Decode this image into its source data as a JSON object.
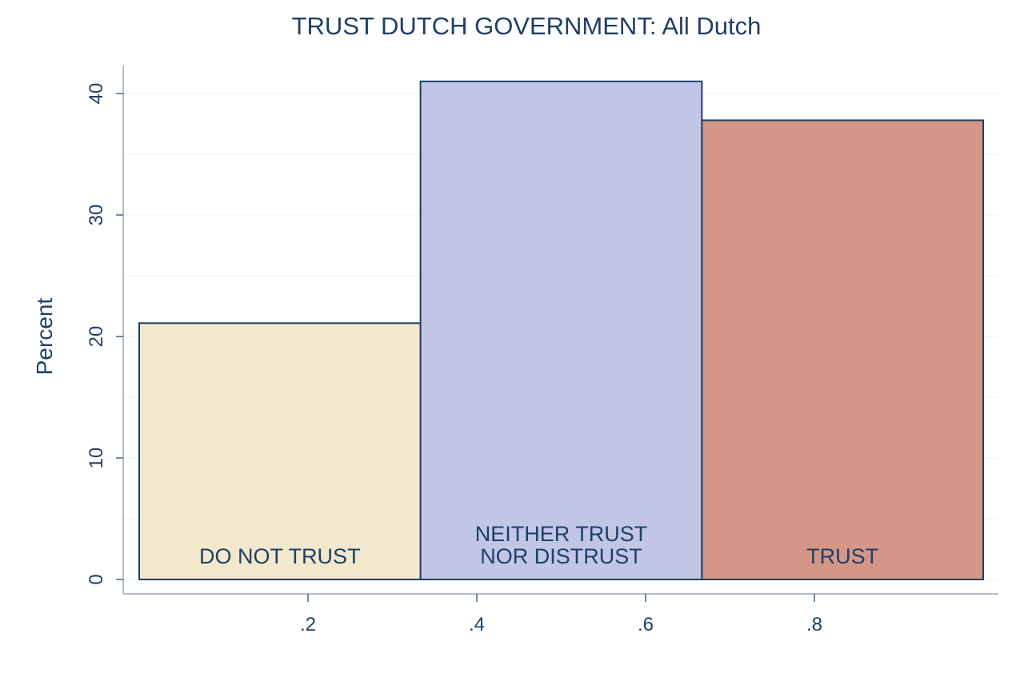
{
  "chart_data": {
    "type": "bar",
    "title": "TRUST DUTCH GOVERNMENT: All Dutch",
    "ylabel": "Percent",
    "xlabel": "",
    "xlim": [
      0,
      1.0
    ],
    "ylim": [
      0,
      40
    ],
    "yticks": [
      0,
      10,
      20,
      30,
      40
    ],
    "xticks": [
      ".2",
      ".4",
      ".6",
      ".8"
    ],
    "grid": true,
    "bars": [
      {
        "label_lines": [
          "DO NOT TRUST"
        ],
        "x0": 0,
        "x1": 0.3333,
        "value": 21.1,
        "color": "#f2e8cb"
      },
      {
        "label_lines": [
          "NEITHER TRUST",
          "NOR DISTRUST"
        ],
        "x0": 0.3333,
        "x1": 0.6667,
        "value": 41.0,
        "color": "#c2c6e6"
      },
      {
        "label_lines": [
          "TRUST"
        ],
        "x0": 0.6667,
        "x1": 1.0,
        "value": 37.8,
        "color": "#d49686"
      }
    ],
    "edge_color": "#1f3f66",
    "text_color": "#1f3f66"
  }
}
